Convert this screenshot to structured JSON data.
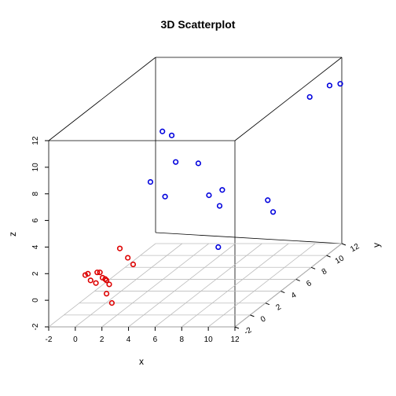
{
  "chart_data": {
    "type": "scatter",
    "title": "3D Scatterplot",
    "xlabel": "x",
    "ylabel": "y",
    "zlabel": "z",
    "xlim": [
      -2,
      12
    ],
    "ylim": [
      -2,
      12
    ],
    "zlim": [
      -2,
      12
    ],
    "x_ticks": [
      "-2",
      "0",
      "2",
      "4",
      "6",
      "8",
      "10",
      "12"
    ],
    "y_ticks": [
      "-2",
      "0",
      "2",
      "4",
      "6",
      "8",
      "10",
      "12"
    ],
    "z_ticks": [
      "-2",
      "0",
      "2",
      "4",
      "6",
      "8",
      "10",
      "12"
    ],
    "grid": "floor",
    "series": [
      {
        "color": "#dd0000",
        "points": [
          {
            "x": -0.4,
            "y": 0.0,
            "z": 1.0
          },
          {
            "x": -0.2,
            "y": 0.0,
            "z": 1.1
          },
          {
            "x": 0.0,
            "y": 0.0,
            "z": 0.6
          },
          {
            "x": 0.5,
            "y": 0.0,
            "z": 1.2
          },
          {
            "x": 0.7,
            "y": 0.0,
            "z": 1.2
          },
          {
            "x": 0.9,
            "y": 0.0,
            "z": 0.8
          },
          {
            "x": 1.1,
            "y": 0.0,
            "z": 0.7
          },
          {
            "x": 1.2,
            "y": 0.0,
            "z": 0.6
          },
          {
            "x": 0.4,
            "y": 0.0,
            "z": 0.4
          },
          {
            "x": 1.4,
            "y": 0.0,
            "z": 0.3
          },
          {
            "x": 1.2,
            "y": 0.0,
            "z": -0.4
          },
          {
            "x": 1.6,
            "y": 0.0,
            "z": -1.1
          },
          {
            "x": 2.2,
            "y": 0.0,
            "z": 3.0
          },
          {
            "x": 2.8,
            "y": 0.0,
            "z": 2.3
          },
          {
            "x": 3.2,
            "y": 0.0,
            "z": 1.8
          }
        ]
      },
      {
        "color": "#0000dd",
        "points": [
          {
            "x": 4.5,
            "y": 0.0,
            "z": 8.0
          },
          {
            "x": 5.4,
            "y": 0.0,
            "z": 11.8
          },
          {
            "x": 5.6,
            "y": 0.0,
            "z": 6.9
          },
          {
            "x": 6.1,
            "y": 0.0,
            "z": 11.5
          },
          {
            "x": 6.4,
            "y": 0.0,
            "z": 9.5
          },
          {
            "x": 8.1,
            "y": 0.0,
            "z": 9.4
          },
          {
            "x": 8.9,
            "y": 0.0,
            "z": 7.0
          },
          {
            "x": 9.7,
            "y": 0.0,
            "z": 6.2
          },
          {
            "x": 9.9,
            "y": 0.0,
            "z": 7.4
          },
          {
            "x": 9.6,
            "y": 0.0,
            "z": 3.1
          },
          {
            "x": 12.0,
            "y": 2.3,
            "z": 5.6
          },
          {
            "x": 12.0,
            "y": 3.0,
            "z": 4.4
          },
          {
            "x": 12.0,
            "y": 7.8,
            "z": 10.9
          },
          {
            "x": 12.0,
            "y": 10.4,
            "z": 10.6
          },
          {
            "x": 12.0,
            "y": 11.8,
            "z": 10.1
          }
        ]
      }
    ]
  }
}
